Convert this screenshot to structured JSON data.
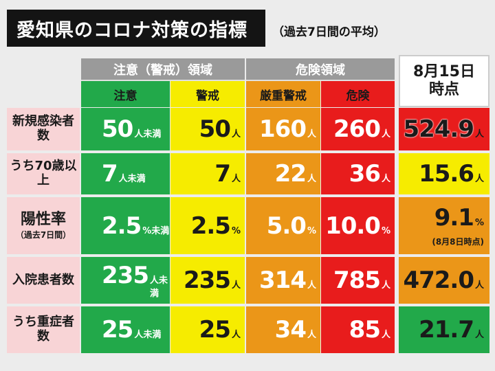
{
  "title": "愛知県のコロナ対策の指標",
  "subtitle": "（過去7日間の平均）",
  "headers": {
    "group_caution": "注意（警戒）領域",
    "group_danger": "危険領域",
    "current": [
      "8月15日",
      "時点"
    ],
    "levels": [
      "注意",
      "警戒",
      "厳重警戒",
      "危険"
    ]
  },
  "rows": [
    {
      "label": "新規感染者数",
      "thresholds": [
        {
          "num": "50",
          "unit": "人未満"
        },
        {
          "num": "50",
          "unit": "人"
        },
        {
          "num": "160",
          "unit": "人"
        },
        {
          "num": "260",
          "unit": "人"
        }
      ],
      "current": {
        "num": "524.9",
        "unit": "人",
        "level": "red"
      }
    },
    {
      "label": "うち70歳以上",
      "thresholds": [
        {
          "num": "7",
          "unit": "人未満"
        },
        {
          "num": "7",
          "unit": "人"
        },
        {
          "num": "22",
          "unit": "人"
        },
        {
          "num": "36",
          "unit": "人"
        }
      ],
      "current": {
        "num": "15.6",
        "unit": "人",
        "level": "yellow"
      }
    },
    {
      "label": "陽性率",
      "label_sub": "（過去7日間）",
      "thresholds": [
        {
          "num": "2.5",
          "unit": "%未満"
        },
        {
          "num": "2.5",
          "unit": "%"
        },
        {
          "num": "5.0",
          "unit": "%"
        },
        {
          "num": "10.0",
          "unit": "%"
        }
      ],
      "current": {
        "num": "9.1",
        "unit": "%",
        "note": "(8月8日時点)",
        "level": "orange"
      }
    },
    {
      "label": "入院患者数",
      "thresholds": [
        {
          "num": "235",
          "unit": "人未満"
        },
        {
          "num": "235",
          "unit": "人"
        },
        {
          "num": "314",
          "unit": "人"
        },
        {
          "num": "785",
          "unit": "人"
        }
      ],
      "current": {
        "num": "472.0",
        "unit": "人",
        "level": "orange"
      }
    },
    {
      "label": "うち重症者数",
      "thresholds": [
        {
          "num": "25",
          "unit": "人未満"
        },
        {
          "num": "25",
          "unit": "人"
        },
        {
          "num": "34",
          "unit": "人"
        },
        {
          "num": "85",
          "unit": "人"
        }
      ],
      "current": {
        "num": "21.7",
        "unit": "人",
        "level": "green"
      }
    }
  ],
  "colors": {
    "green": "#22a94a",
    "yellow": "#f6ec00",
    "orange": "#eb9618",
    "red": "#e81c1c",
    "header_gray": "#9a9a9a",
    "row_label_pink": "#f8d4d6"
  }
}
